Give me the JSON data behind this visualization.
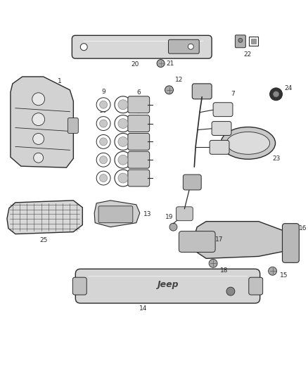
{
  "bg_color": "#ffffff",
  "lc": "#2a2a2a",
  "gray1": "#c8c8c8",
  "gray2": "#d8d8d8",
  "gray3": "#e8e8e8",
  "gray4": "#b0b0b0",
  "dark": "#555555",
  "figsize": [
    4.38,
    5.33
  ],
  "dpi": 100
}
